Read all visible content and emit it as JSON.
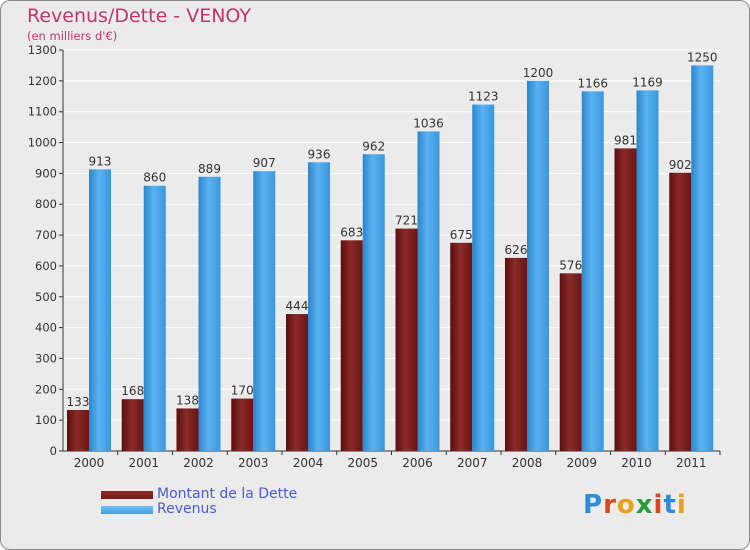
{
  "title": "Revenus/Dette - VENOY",
  "subtitle": "(en milliers d'€)",
  "logo": {
    "text": "Proxiti",
    "letter_colors": [
      "#2e8bd8",
      "#d24a1e",
      "#e8a11a",
      "#2a9a3c",
      "#d24a1e",
      "#2e8bd8",
      "#e8a11a"
    ]
  },
  "colors": {
    "debt": "#7a1818",
    "revenue": "#3f9fe6",
    "background": "#ebebeb",
    "grid": "#ffffff",
    "axis": "#333333",
    "title": "#c0356f",
    "legend_text": "#4a5bd8"
  },
  "chart_data": {
    "type": "bar",
    "title": "Revenus/Dette - VENOY",
    "subtitle": "(en milliers d'€)",
    "categories": [
      "2000",
      "2001",
      "2002",
      "2003",
      "2004",
      "2005",
      "2006",
      "2007",
      "2008",
      "2009",
      "2010",
      "2011"
    ],
    "series": [
      {
        "name": "Montant de la Dette",
        "values": [
          133,
          168,
          138,
          170,
          444,
          683,
          721,
          675,
          626,
          576,
          981,
          902
        ]
      },
      {
        "name": "Revenus",
        "values": [
          913,
          860,
          889,
          907,
          936,
          962,
          1036,
          1123,
          1200,
          1166,
          1169,
          1250
        ]
      }
    ],
    "ylim": [
      0,
      1300
    ],
    "yticks": [
      "0",
      "100",
      "200",
      "300",
      "400",
      "500",
      "600",
      "700",
      "800",
      "900",
      "1000",
      "1100",
      "1200",
      "1300"
    ],
    "grid": true,
    "legend": "bottom-left"
  }
}
